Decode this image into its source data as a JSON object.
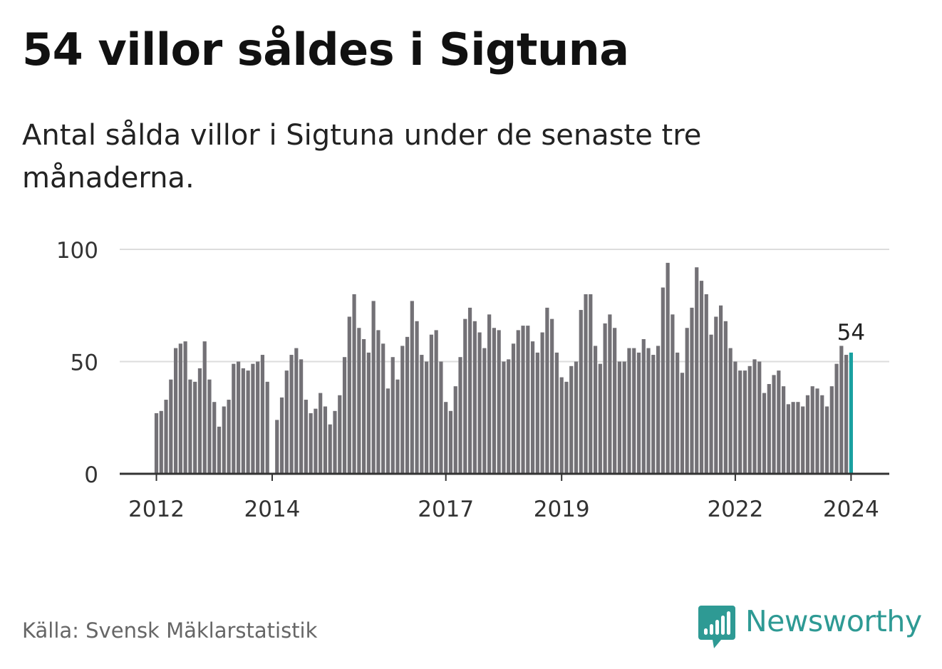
{
  "title": "54 villor såldes i Sigtuna",
  "subtitle": "Antal sålda villor i Sigtuna under de senaste tre månaderna.",
  "source": "Källa: Svensk Mäklarstatistik",
  "brand": "Newsworthy",
  "colors": {
    "bar": "#737176",
    "highlight": "#19a0a0",
    "grid": "#dddddd",
    "axis": "#333333",
    "brand": "#2e9a94"
  },
  "chart_data": {
    "type": "bar",
    "title": "54 villor såldes i Sigtuna",
    "xlabel": "",
    "ylabel": "",
    "ylim": [
      0,
      100
    ],
    "yticks": [
      "0",
      "50",
      "100"
    ],
    "start_month": "2012-01",
    "xticks": [
      {
        "label": "2012",
        "index": 0
      },
      {
        "label": "2014",
        "index": 24
      },
      {
        "label": "2017",
        "index": 60
      },
      {
        "label": "2019",
        "index": 84
      },
      {
        "label": "2022",
        "index": 120
      },
      {
        "label": "2024",
        "index": 144
      }
    ],
    "values": [
      27,
      28,
      33,
      42,
      56,
      58,
      59,
      42,
      41,
      47,
      59,
      42,
      32,
      21,
      30,
      33,
      49,
      50,
      47,
      46,
      49,
      50,
      53,
      41,
      null,
      24,
      34,
      46,
      53,
      56,
      51,
      33,
      27,
      29,
      36,
      30,
      22,
      28,
      35,
      52,
      70,
      80,
      65,
      60,
      54,
      77,
      64,
      58,
      38,
      52,
      42,
      57,
      61,
      77,
      68,
      53,
      50,
      62,
      64,
      50,
      32,
      28,
      39,
      52,
      69,
      74,
      68,
      63,
      56,
      71,
      65,
      64,
      50,
      51,
      58,
      64,
      66,
      66,
      59,
      54,
      63,
      74,
      69,
      54,
      43,
      41,
      48,
      50,
      73,
      80,
      80,
      57,
      49,
      67,
      71,
      65,
      50,
      50,
      56,
      56,
      54,
      60,
      56,
      53,
      57,
      83,
      94,
      71,
      54,
      45,
      65,
      74,
      92,
      86,
      80,
      62,
      70,
      75,
      68,
      56,
      50,
      46,
      46,
      48,
      51,
      50,
      36,
      40,
      44,
      46,
      39,
      31,
      32,
      32,
      30,
      35,
      39,
      38,
      35,
      30,
      39,
      49,
      57,
      53,
      54
    ],
    "highlight_index": 144,
    "highlight_label": "54"
  }
}
